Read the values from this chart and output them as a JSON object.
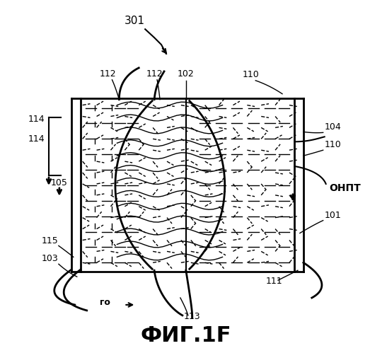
{
  "title": "ФИГ.1F",
  "title_fontsize": 22,
  "bg_color": "#ffffff",
  "line_color": "#000000",
  "label_301": "301",
  "label_112a": "112",
  "label_112b": "112",
  "label_102": "102",
  "label_110a": "110",
  "label_110b": "110",
  "label_114a": "114",
  "label_114b": "114",
  "label_104": "104",
  "label_105": "105",
  "label_101": "101",
  "label_ONPT": "ОНПТ",
  "label_115": "115",
  "label_103": "103",
  "label_111": "111",
  "label_113": "113",
  "label_go": "го",
  "fig_width": 5.23,
  "fig_height": 4.99
}
